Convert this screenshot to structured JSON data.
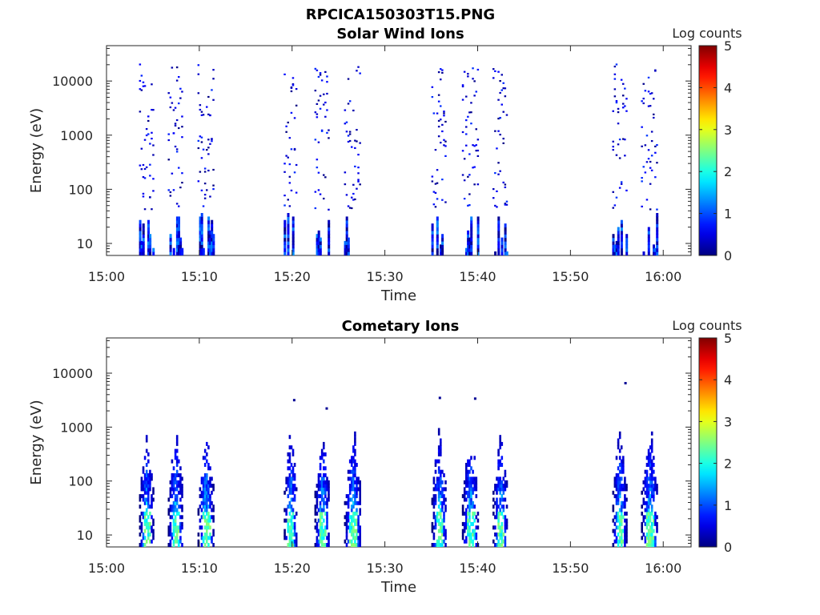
{
  "page_title": "RPCICA150303T15.PNG",
  "chart_data": [
    {
      "type": "heatmap",
      "title": "Solar Wind Ions",
      "xlabel": "Time",
      "ylabel": "Energy (eV)",
      "x_ticks": [
        "15:00",
        "15:10",
        "15:20",
        "15:30",
        "15:40",
        "15:50",
        "16:00"
      ],
      "x_range_minutes": [
        0,
        63
      ],
      "y_scale": "log",
      "y_ticks": [
        "10",
        "100",
        "1000",
        "10000"
      ],
      "ylim": [
        6,
        45000
      ],
      "colorbar": {
        "label": "Log counts",
        "range": [
          0,
          5
        ],
        "ticks": [
          "0",
          "1",
          "2",
          "3",
          "4",
          "5"
        ],
        "colormap": "jet"
      },
      "bursts_minutes": [
        [
          3.5,
          5.0
        ],
        [
          6.6,
          8.2
        ],
        [
          9.8,
          11.5
        ],
        [
          19.1,
          20.5
        ],
        [
          22.4,
          24.0
        ],
        [
          25.6,
          27.4
        ],
        [
          35.0,
          36.6
        ],
        [
          38.3,
          40.0
        ],
        [
          41.6,
          43.2
        ],
        [
          54.5,
          56.0
        ],
        [
          57.6,
          59.4
        ]
      ],
      "data_ranges": {
        "sparse_energy_ev": [
          40,
          20000
        ],
        "low_energy_ev": [
          6,
          35
        ],
        "sparse_log_counts": [
          0,
          0.9
        ],
        "low_energy_log_counts": [
          0,
          1.9
        ]
      }
    },
    {
      "type": "heatmap",
      "title": "Cometary Ions",
      "xlabel": "Time",
      "ylabel": "Energy (eV)",
      "x_ticks": [
        "15:00",
        "15:10",
        "15:20",
        "15:30",
        "15:40",
        "15:50",
        "16:00"
      ],
      "x_range_minutes": [
        0,
        63
      ],
      "y_scale": "log",
      "y_ticks": [
        "10",
        "100",
        "1000",
        "10000"
      ],
      "ylim": [
        6,
        45000
      ],
      "colorbar": {
        "label": "Log counts",
        "range": [
          0,
          5
        ],
        "ticks": [
          "0",
          "1",
          "2",
          "3",
          "4",
          "5"
        ],
        "colormap": "jet"
      },
      "bursts_minutes": [
        [
          3.5,
          5.0
        ],
        [
          6.6,
          8.2
        ],
        [
          9.8,
          11.5
        ],
        [
          19.1,
          20.5
        ],
        [
          22.4,
          24.0
        ],
        [
          25.6,
          27.4
        ],
        [
          35.0,
          36.6
        ],
        [
          38.3,
          40.0
        ],
        [
          41.6,
          43.2
        ],
        [
          54.5,
          56.0
        ],
        [
          57.6,
          59.4
        ]
      ],
      "data_ranges": {
        "plume_energy_ev": [
          6,
          1500
        ],
        "plume_log_counts": [
          0,
          2.6
        ],
        "peak_log_counts": 2.6
      },
      "isolated_points": [
        {
          "t": 20.1,
          "ev": 3000
        },
        {
          "t": 23.6,
          "ev": 2100
        },
        {
          "t": 35.8,
          "ev": 3300
        },
        {
          "t": 39.6,
          "ev": 3200
        },
        {
          "t": 55.8,
          "ev": 6200
        }
      ]
    }
  ]
}
